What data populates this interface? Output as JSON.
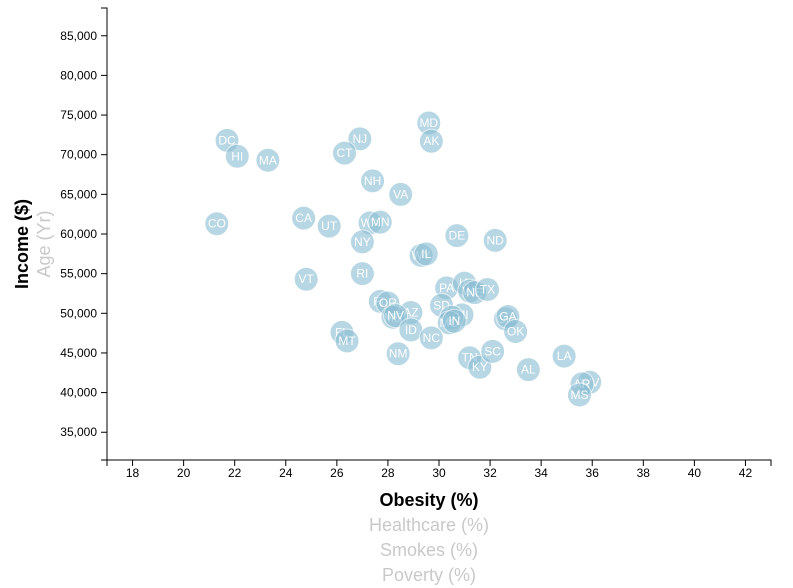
{
  "chart_data": {
    "type": "scatter",
    "x_axis": {
      "ticks": [
        18,
        20,
        22,
        24,
        26,
        28,
        30,
        32,
        34,
        36,
        38,
        40,
        42
      ],
      "range": [
        17,
        43
      ],
      "labels": [
        {
          "text": "Obesity (%)",
          "active": true
        },
        {
          "text": "Healthcare (%)",
          "active": false
        },
        {
          "text": "Smokes (%)",
          "active": false
        },
        {
          "text": "Poverty (%)",
          "active": false
        }
      ]
    },
    "y_axis": {
      "ticks": [
        35000,
        40000,
        45000,
        50000,
        55000,
        60000,
        65000,
        70000,
        75000,
        80000,
        85000
      ],
      "tick_labels": [
        "35,000",
        "40,000",
        "45,000",
        "50,000",
        "55,000",
        "60,000",
        "65,000",
        "70,000",
        "75,000",
        "80,000",
        "85,000"
      ],
      "range": [
        31500,
        88500
      ],
      "labels": [
        {
          "text": "Income ($)",
          "active": true
        },
        {
          "text": "Age (Yr)",
          "active": false
        }
      ]
    },
    "marker_color": "#89bdd3",
    "points": [
      {
        "abbr": "DC",
        "x": 21.7,
        "y": 71800
      },
      {
        "abbr": "HI",
        "x": 22.1,
        "y": 69800
      },
      {
        "abbr": "MA",
        "x": 23.3,
        "y": 69300
      },
      {
        "abbr": "CO",
        "x": 21.3,
        "y": 61300
      },
      {
        "abbr": "CA",
        "x": 24.7,
        "y": 62000
      },
      {
        "abbr": "UT",
        "x": 25.7,
        "y": 61000
      },
      {
        "abbr": "VT",
        "x": 24.8,
        "y": 54300
      },
      {
        "abbr": "NJ",
        "x": 26.9,
        "y": 72000
      },
      {
        "abbr": "CT",
        "x": 26.3,
        "y": 70200
      },
      {
        "abbr": "MD",
        "x": 29.6,
        "y": 74000
      },
      {
        "abbr": "AK",
        "x": 29.7,
        "y": 71700
      },
      {
        "abbr": "NH",
        "x": 27.4,
        "y": 66700
      },
      {
        "abbr": "VA",
        "x": 28.5,
        "y": 65000
      },
      {
        "abbr": "WA",
        "x": 27.3,
        "y": 61400
      },
      {
        "abbr": "MN",
        "x": 27.7,
        "y": 61500
      },
      {
        "abbr": "NY",
        "x": 27.0,
        "y": 59000
      },
      {
        "abbr": "DE",
        "x": 30.7,
        "y": 59800
      },
      {
        "abbr": "ND",
        "x": 32.2,
        "y": 59200
      },
      {
        "abbr": "WY",
        "x": 29.3,
        "y": 57300
      },
      {
        "abbr": "IL",
        "x": 29.5,
        "y": 57500
      },
      {
        "abbr": "RI",
        "x": 27.0,
        "y": 55000
      },
      {
        "abbr": "PA",
        "x": 30.3,
        "y": 53200
      },
      {
        "abbr": "IA",
        "x": 31.0,
        "y": 53800
      },
      {
        "abbr": "WI",
        "x": 31.2,
        "y": 52800
      },
      {
        "abbr": "NE",
        "x": 31.4,
        "y": 52600
      },
      {
        "abbr": "TX",
        "x": 31.9,
        "y": 53000
      },
      {
        "abbr": "SD",
        "x": 30.1,
        "y": 51000
      },
      {
        "abbr": "FL",
        "x": 27.7,
        "y": 51500
      },
      {
        "abbr": "OR",
        "x": 28.0,
        "y": 51300
      },
      {
        "abbr": "AZ",
        "x": 28.9,
        "y": 50100
      },
      {
        "abbr": "ME",
        "x": 28.2,
        "y": 49500
      },
      {
        "abbr": "NV",
        "x": 28.3,
        "y": 49700
      },
      {
        "abbr": "MI",
        "x": 30.9,
        "y": 49800
      },
      {
        "abbr": "KS",
        "x": 30.5,
        "y": 49500
      },
      {
        "abbr": "MO",
        "x": 30.4,
        "y": 48800
      },
      {
        "abbr": "ID",
        "x": 28.9,
        "y": 47900
      },
      {
        "abbr": "IN",
        "x": 30.6,
        "y": 49000
      },
      {
        "abbr": "OH",
        "x": 32.6,
        "y": 49300
      },
      {
        "abbr": "GA",
        "x": 32.7,
        "y": 49600
      },
      {
        "abbr": "OK",
        "x": 33.0,
        "y": 47700
      },
      {
        "abbr": "NC",
        "x": 29.7,
        "y": 46900
      },
      {
        "abbr": "FL2",
        "label": "FL",
        "x": 26.2,
        "y": 47600
      },
      {
        "abbr": "MT",
        "x": 26.4,
        "y": 46500
      },
      {
        "abbr": "NM",
        "x": 28.4,
        "y": 44900
      },
      {
        "abbr": "TN",
        "x": 31.2,
        "y": 44400
      },
      {
        "abbr": "KY",
        "x": 31.6,
        "y": 43200
      },
      {
        "abbr": "SC",
        "x": 32.1,
        "y": 45200
      },
      {
        "abbr": "AL",
        "x": 33.5,
        "y": 42900
      },
      {
        "abbr": "LA",
        "x": 34.9,
        "y": 44600
      },
      {
        "abbr": "WV",
        "x": 35.9,
        "y": 41300
      },
      {
        "abbr": "AR",
        "x": 35.6,
        "y": 41100
      },
      {
        "abbr": "MS",
        "x": 35.5,
        "y": 39700
      }
    ]
  }
}
